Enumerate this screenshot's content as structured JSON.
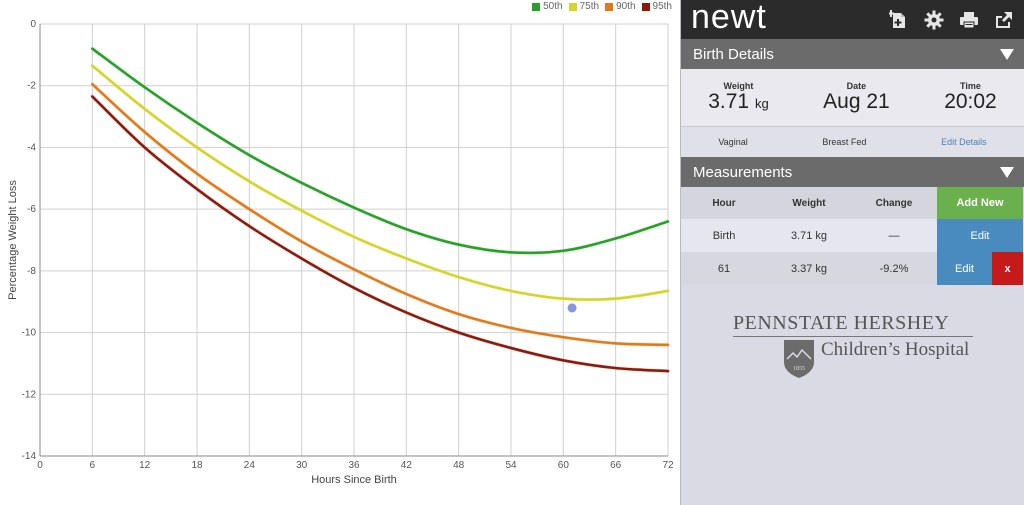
{
  "chart_data": {
    "type": "line",
    "xlabel": "Hours Since Birth",
    "ylabel": "Percentage Weight Loss",
    "xlim": [
      0,
      72
    ],
    "ylim": [
      -14,
      0
    ],
    "xticks": [
      "0",
      "6",
      "12",
      "18",
      "24",
      "30",
      "36",
      "42",
      "48",
      "54",
      "60",
      "66",
      "72"
    ],
    "yticks": [
      "0",
      "-2",
      "-4",
      "-6",
      "-8",
      "-10",
      "-12",
      "-14"
    ],
    "grid": true,
    "legend_position": "top-right",
    "x": [
      6,
      12,
      18,
      24,
      30,
      36,
      42,
      48,
      54,
      60,
      66,
      72
    ],
    "series": [
      {
        "name": "50th",
        "color": "#2aa02a",
        "values": [
          -0.8,
          -2.05,
          -3.2,
          -4.25,
          -5.15,
          -5.95,
          -6.65,
          -7.15,
          -7.4,
          -7.35,
          -6.95,
          -6.4
        ]
      },
      {
        "name": "75th",
        "color": "#d4d42a",
        "values": [
          -1.35,
          -2.75,
          -4.0,
          -5.1,
          -6.05,
          -6.9,
          -7.6,
          -8.2,
          -8.65,
          -8.9,
          -8.9,
          -8.65
        ]
      },
      {
        "name": "90th",
        "color": "#e07a1a",
        "values": [
          -1.95,
          -3.5,
          -4.85,
          -6.0,
          -7.05,
          -7.95,
          -8.75,
          -9.4,
          -9.85,
          -10.15,
          -10.35,
          -10.4
        ]
      },
      {
        "name": "95th",
        "color": "#8b1a0a",
        "values": [
          -2.35,
          -4.0,
          -5.35,
          -6.55,
          -7.6,
          -8.55,
          -9.35,
          -10.0,
          -10.5,
          -10.9,
          -11.15,
          -11.25
        ]
      }
    ],
    "points": [
      {
        "x": 61,
        "y": -9.2,
        "color": "#8a95e0"
      }
    ]
  },
  "app": {
    "logo": "newt",
    "icons": [
      "add-page-icon",
      "gear-icon",
      "print-icon",
      "share-icon"
    ]
  },
  "birth_details": {
    "header": "Birth Details",
    "weight_label": "Weight",
    "weight_value": "3.71",
    "weight_unit": "kg",
    "date_label": "Date",
    "date_value": "Aug 21",
    "time_label": "Time",
    "time_value": "20:02",
    "delivery": "Vaginal",
    "feeding": "Breast Fed",
    "edit_link": "Edit Details"
  },
  "measurements": {
    "header": "Measurements",
    "col_hour": "Hour",
    "col_weight": "Weight",
    "col_change": "Change",
    "add_button": "Add New",
    "rows": [
      {
        "hour": "Birth",
        "weight": "3.71 kg",
        "change": "—",
        "edit": "Edit"
      },
      {
        "hour": "61",
        "weight": "3.37 kg",
        "change": "-9.2%",
        "edit": "Edit",
        "delete": "x"
      }
    ]
  },
  "hospital": {
    "line1": "PENNSTATE HERSHEY",
    "line2": "Children’s Hospital",
    "seal_year": "1855"
  }
}
